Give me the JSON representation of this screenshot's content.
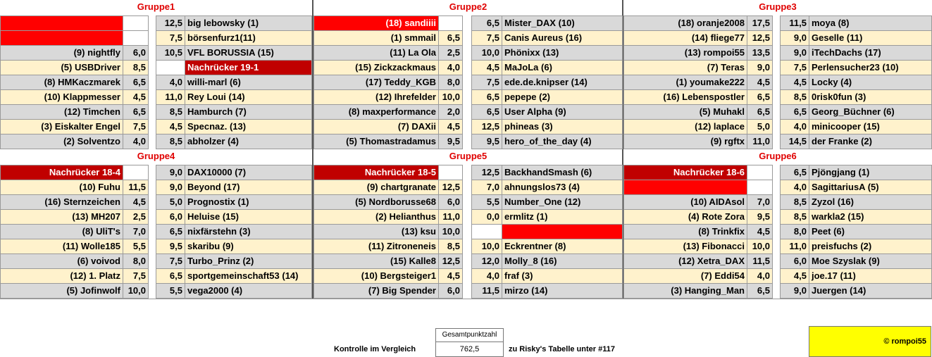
{
  "groups": [
    {
      "title": "Gruppe1",
      "rows": [
        [
          null,
          null,
          "12,5",
          "big lebowsky (1)"
        ],
        [
          null,
          null,
          "7,5",
          "börsenfurz1(11)"
        ],
        [
          "(9) nightfly",
          "6,0",
          "10,5",
          "VFL BORUSSIA (15)"
        ],
        [
          "(5) USBDriver",
          "8,5",
          null,
          "Nachrücker 19-1"
        ],
        [
          "(8) HMKaczmarek",
          "6,5",
          "4,0",
          "willi-marl (6)"
        ],
        [
          "(10) Klappmesser",
          "4,5",
          "11,0",
          "Rey Loui (14)"
        ],
        [
          "(12) Timchen",
          "6,5",
          "8,5",
          "Hamburch (7)"
        ],
        [
          "(3) Eiskalter Engel",
          "7,5",
          "4,5",
          "Specnaz. (13)"
        ],
        [
          "(2) Solventzo",
          "4,0",
          "8,5",
          "abholzer (4)"
        ]
      ]
    },
    {
      "title": "Gruppe2",
      "rows": [
        [
          "(18) sandiiii",
          null,
          "6,5",
          "Mister_DAX (10)"
        ],
        [
          "(1) smmail",
          "6,5",
          "7,5",
          "Canis Aureus (16)"
        ],
        [
          "(11) La Ola",
          "2,5",
          "10,0",
          "Phönixx (13)"
        ],
        [
          "(15) Zickzackmaus",
          "4,0",
          "4,5",
          "MaJoLa (6)"
        ],
        [
          "(17) Teddy_KGB",
          "8,0",
          "7,5",
          "ede.de.knipser (14)"
        ],
        [
          "(12) Ihrefelder",
          "10,0",
          "6,5",
          "pepepe (2)"
        ],
        [
          "(8) maxperformance",
          "2,0",
          "6,5",
          "User Alpha (9)"
        ],
        [
          "(7) DAXii",
          "4,5",
          "12,5",
          "phineas (3)"
        ],
        [
          "(5) Thomastradamus",
          "9,5",
          "9,5",
          "hero_of_the_day (4)"
        ]
      ]
    },
    {
      "title": "Gruppe3",
      "rows": [
        [
          "(18) oranje2008",
          "17,5",
          "11,5",
          "moya (8)"
        ],
        [
          "(14) fliege77",
          "12,5",
          "9,0",
          "Geselle (11)"
        ],
        [
          "(13) rompoi55",
          "13,5",
          "9,0",
          "iTechDachs (17)"
        ],
        [
          "(7) Teras",
          "9,0",
          "7,5",
          "Perlensucher23 (10)"
        ],
        [
          "(1) youmake222",
          "4,5",
          "4,5",
          "Locky (4)"
        ],
        [
          "(16) Lebenspostler",
          "6,5",
          "8,5",
          "0risk0fun (3)"
        ],
        [
          "(5) Muhakl",
          "6,5",
          "6,5",
          "Georg_Büchner (6)"
        ],
        [
          "(12) laplace",
          "5,0",
          "4,0",
          "minicooper (15)"
        ],
        [
          "(9) rgftx",
          "11,0",
          "14,5",
          "der Franke (2)"
        ]
      ]
    },
    {
      "title": "Gruppe4",
      "rows": [
        [
          "Nachrücker 18-4",
          null,
          "9,0",
          "DAX10000 (7)"
        ],
        [
          "(10) Fuhu",
          "11,5",
          "9,0",
          "Beyond (17)"
        ],
        [
          "(16) Sternzeichen",
          "4,5",
          "5,0",
          "Prognostix (1)"
        ],
        [
          "(13) MH207",
          "2,5",
          "6,0",
          "Heluise (15)"
        ],
        [
          "(8) UliT's",
          "7,0",
          "6,5",
          "nixfärstehn (3)"
        ],
        [
          "(11) Wolle185",
          "5,5",
          "9,5",
          "skaribu (9)"
        ],
        [
          "(6) voivod",
          "8,0",
          "7,5",
          "Turbo_Prinz (2)"
        ],
        [
          "(12) 1. Platz",
          "7,5",
          "6,5",
          "sportgemeinschaft53 (14)"
        ],
        [
          "(5) Jofinwolf",
          "10,0",
          "5,5",
          "vega2000 (4)"
        ]
      ]
    },
    {
      "title": "Gruppe5",
      "rows": [
        [
          "Nachrücker 18-5",
          null,
          "12,5",
          "BackhandSmash (6)"
        ],
        [
          "(9) chartgranate",
          "12,5",
          "7,0",
          "ahnungslos73 (4)"
        ],
        [
          "(5) Nordborusse68",
          "6,0",
          "5,5",
          "Number_One (12)"
        ],
        [
          "(2) Helianthus",
          "11,0",
          "0,0",
          "ermlitz (1)"
        ],
        [
          "(13) ksu",
          "10,0",
          null,
          null
        ],
        [
          "(11) Zitroneneis",
          "8,5",
          "10,0",
          "Eckrentner (8)"
        ],
        [
          "(15) Kalle8",
          "12,5",
          "12,0",
          "Molly_8 (16)"
        ],
        [
          "(10) Bergsteiger1",
          "4,5",
          "4,0",
          "fraf (3)"
        ],
        [
          "(7) Big Spender",
          "6,0",
          "11,5",
          "mirzo (14)"
        ]
      ]
    },
    {
      "title": "Gruppe6",
      "rows": [
        [
          "Nachrücker 18-6",
          null,
          "6,5",
          "Pjöngjang (1)"
        ],
        [
          null,
          null,
          "4,0",
          "SagittariusA (5)"
        ],
        [
          "(10) AIDAsol",
          "7,0",
          "8,5",
          "Zyzol (16)"
        ],
        [
          "(4) Rote Zora",
          "9,5",
          "8,5",
          "warkla2 (15)"
        ],
        [
          "(8) Trinkfix",
          "4,5",
          "8,0",
          "Peet (6)"
        ],
        [
          "(13) Fibonacci",
          "10,0",
          "11,0",
          "preisfuchs (2)"
        ],
        [
          "(12) Xetra_DAX",
          "11,5",
          "6,0",
          "Moe Szyslak (9)"
        ],
        [
          "(7) Eddi54",
          "4,0",
          "4,5",
          "joe.17 (11)"
        ],
        [
          "(3) Hanging_Man",
          "6,5",
          "9,0",
          "Juergen (14)"
        ]
      ]
    }
  ],
  "footer": {
    "label": "Kontrolle im Vergleich",
    "total_header": "Gesamtpunktzahl",
    "total": "762,5",
    "note": "zu Risky's Tabelle unter #117",
    "credit": "© rompoi55"
  }
}
